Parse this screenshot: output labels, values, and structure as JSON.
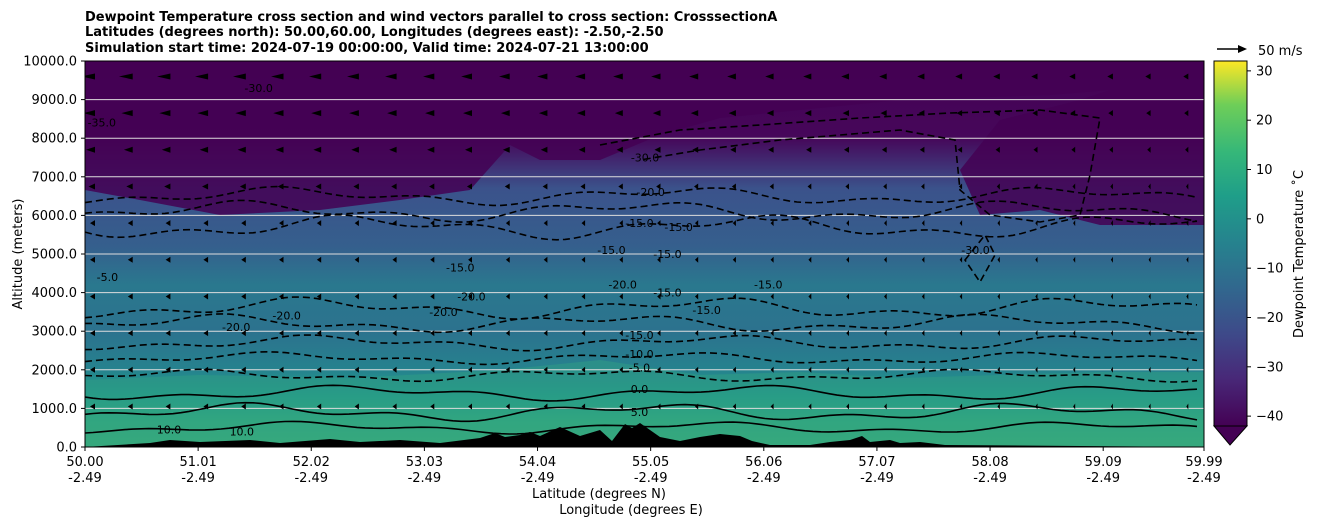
{
  "chart_data": {
    "type": "contour",
    "title_lines": [
      "Dewpoint Temperature cross section and wind vectors parallel to cross section: CrosssectionA",
      "Latitudes (degrees north): 50.00,60.00, Longitudes (degrees east): -2.50,-2.50",
      "Simulation start time: 2024-07-19 00:00:00, Valid time: 2024-07-21 13:00:00"
    ],
    "ylabel": "Altitude (meters)",
    "xlabel_lines": [
      "Latitude (degrees N)",
      "Longitude (degrees E)"
    ],
    "ylim": [
      0,
      10000
    ],
    "y_ticks": [
      0,
      1000,
      2000,
      3000,
      4000,
      5000,
      6000,
      7000,
      8000,
      9000,
      10000
    ],
    "y_tick_labels": [
      "0.0",
      "1000.0",
      "2000.0",
      "3000.0",
      "4000.0",
      "5000.0",
      "6000.0",
      "7000.0",
      "8000.0",
      "9000.0",
      "10000.0"
    ],
    "xlim": [
      50.0,
      59.99
    ],
    "x_ticks": [
      50.0,
      51.01,
      52.02,
      53.03,
      54.04,
      55.05,
      56.06,
      57.07,
      58.08,
      59.09,
      59.99
    ],
    "x_tick_labels": [
      {
        "lat": "50.00",
        "lon": "-2.49"
      },
      {
        "lat": "51.01",
        "lon": "-2.49"
      },
      {
        "lat": "52.02",
        "lon": "-2.49"
      },
      {
        "lat": "53.03",
        "lon": "-2.49"
      },
      {
        "lat": "54.04",
        "lon": "-2.49"
      },
      {
        "lat": "55.05",
        "lon": "-2.49"
      },
      {
        "lat": "56.06",
        "lon": "-2.49"
      },
      {
        "lat": "57.07",
        "lon": "-2.49"
      },
      {
        "lat": "58.08",
        "lon": "-2.49"
      },
      {
        "lat": "59.09",
        "lon": "-2.49"
      },
      {
        "lat": "59.99",
        "lon": "-2.49"
      }
    ],
    "grid_horizontal": true,
    "colorbar": {
      "label": "Dewpoint Temperature ˚C",
      "range": [
        -42,
        32
      ],
      "ticks": [
        -40,
        -30,
        -20,
        -10,
        0,
        10,
        20,
        30
      ],
      "tick_labels": [
        "−40",
        "−30",
        "−20",
        "−10",
        "0",
        "10",
        "20",
        "30"
      ],
      "colormap": "viridis",
      "extend": "min"
    },
    "quiver_key": {
      "label": "50 m/s"
    },
    "contour_labels": [
      {
        "text": "-35.0",
        "lat": 50.15,
        "alt": 8300
      },
      {
        "text": "-30.0",
        "lat": 51.55,
        "alt": 9200
      },
      {
        "text": "-30.0",
        "lat": 55.0,
        "alt": 7400
      },
      {
        "text": "-20.0",
        "lat": 55.05,
        "alt": 6500
      },
      {
        "text": "-15.0",
        "lat": 54.95,
        "alt": 5700
      },
      {
        "text": "-15.0",
        "lat": 55.3,
        "alt": 5600
      },
      {
        "text": "-15.0",
        "lat": 54.7,
        "alt": 5000
      },
      {
        "text": "-15.0",
        "lat": 55.2,
        "alt": 4900
      },
      {
        "text": "-15.0",
        "lat": 53.35,
        "alt": 4550
      },
      {
        "text": "-15.0",
        "lat": 55.2,
        "alt": 3900
      },
      {
        "text": "-15.0",
        "lat": 55.55,
        "alt": 3450
      },
      {
        "text": "-15.0",
        "lat": 56.1,
        "alt": 4100
      },
      {
        "text": "-15.0",
        "lat": 54.95,
        "alt": 2800
      },
      {
        "text": "-10.0",
        "lat": 54.95,
        "alt": 2300
      },
      {
        "text": "-5.0",
        "lat": 54.95,
        "alt": 1950
      },
      {
        "text": "0.0",
        "lat": 54.95,
        "alt": 1400
      },
      {
        "text": "5.0",
        "lat": 54.95,
        "alt": 800
      },
      {
        "text": "-5.0",
        "lat": 50.2,
        "alt": 4300
      },
      {
        "text": "-20.0",
        "lat": 54.8,
        "alt": 4100
      },
      {
        "text": "-20.0",
        "lat": 53.45,
        "alt": 3800
      },
      {
        "text": "-20.0",
        "lat": 53.2,
        "alt": 3400
      },
      {
        "text": "-20.0",
        "lat": 51.35,
        "alt": 3000
      },
      {
        "text": "-20.0",
        "lat": 51.8,
        "alt": 3300
      },
      {
        "text": "-30.0",
        "lat": 57.95,
        "alt": 5000
      },
      {
        "text": "10.0",
        "lat": 50.75,
        "alt": 350
      },
      {
        "text": "10.0",
        "lat": 51.4,
        "alt": 300
      }
    ]
  }
}
